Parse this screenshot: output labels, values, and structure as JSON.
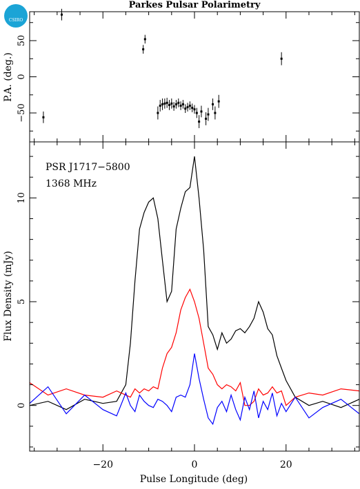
{
  "logo": {
    "text": "CSIRO",
    "color": "#1ba4d6"
  },
  "chart_data": [
    {
      "type": "scatter",
      "title": "Parkes Pulsar Polarimetry",
      "ylabel": "P.A. (deg.)",
      "xlim": [
        -36,
        36
      ],
      "ylim": [
        -90,
        90
      ],
      "yticks": [
        -50,
        0,
        50
      ],
      "points": [
        {
          "x": -33,
          "y": -56,
          "err": 8
        },
        {
          "x": -29,
          "y": 86,
          "err": 8
        },
        {
          "x": -11.2,
          "y": 38,
          "err": 6
        },
        {
          "x": -10.8,
          "y": 52,
          "err": 6
        },
        {
          "x": -8,
          "y": -50,
          "err": 9
        },
        {
          "x": -7.5,
          "y": -40,
          "err": 8
        },
        {
          "x": -7,
          "y": -38,
          "err": 8
        },
        {
          "x": -6.5,
          "y": -37,
          "err": 7
        },
        {
          "x": -6,
          "y": -36,
          "err": 7
        },
        {
          "x": -5.5,
          "y": -39,
          "err": 7
        },
        {
          "x": -5,
          "y": -37,
          "err": 7
        },
        {
          "x": -4.5,
          "y": -41,
          "err": 6
        },
        {
          "x": -4,
          "y": -38,
          "err": 6
        },
        {
          "x": -3.5,
          "y": -36,
          "err": 6
        },
        {
          "x": -3,
          "y": -40,
          "err": 6
        },
        {
          "x": -2.5,
          "y": -38,
          "err": 6
        },
        {
          "x": -2,
          "y": -44,
          "err": 6
        },
        {
          "x": -1.5,
          "y": -42,
          "err": 6
        },
        {
          "x": -1,
          "y": -40,
          "err": 6
        },
        {
          "x": -0.5,
          "y": -43,
          "err": 6
        },
        {
          "x": 0,
          "y": -45,
          "err": 6
        },
        {
          "x": 0.5,
          "y": -50,
          "err": 7
        },
        {
          "x": 1,
          "y": -62,
          "err": 9
        },
        {
          "x": 1.5,
          "y": -48,
          "err": 8
        },
        {
          "x": 2.5,
          "y": -58,
          "err": 9
        },
        {
          "x": 3,
          "y": -52,
          "err": 9
        },
        {
          "x": 4,
          "y": -38,
          "err": 8
        },
        {
          "x": 4.5,
          "y": -50,
          "err": 9
        },
        {
          "x": 5.3,
          "y": -34,
          "err": 9
        },
        {
          "x": 19,
          "y": 25,
          "err": 9
        }
      ]
    },
    {
      "type": "line",
      "title": "",
      "annotations": [
        "PSR J1717−5800",
        "1368 MHz"
      ],
      "xlabel": "Pulse Longitude (deg)",
      "ylabel": "Flux Density (mJy)",
      "xlim": [
        -36,
        36
      ],
      "ylim": [
        -2.2,
        12.7
      ],
      "xticks": [
        -20,
        0,
        20
      ],
      "yticks": [
        0,
        5,
        10
      ],
      "x": [
        -36,
        -32,
        -28,
        -24,
        -20,
        -17,
        -15,
        -14,
        -13,
        -12,
        -11,
        -10,
        -9,
        -8,
        -7,
        -6,
        -5,
        -4,
        -3,
        -2,
        -1,
        0,
        1,
        2,
        3,
        4,
        5,
        6,
        7,
        8,
        9,
        10,
        11,
        12,
        13,
        14,
        15,
        16,
        17,
        18,
        19,
        20,
        22,
        25,
        28,
        32,
        36
      ],
      "series": [
        {
          "name": "",
          "color": "#000000",
          "values": [
            0.0,
            0.2,
            -0.2,
            0.3,
            0.1,
            0.2,
            1.0,
            3.0,
            6.0,
            8.5,
            9.3,
            9.8,
            10.0,
            9.0,
            7.0,
            5.0,
            5.5,
            8.5,
            9.5,
            10.3,
            10.5,
            12.0,
            10.0,
            7.5,
            3.8,
            3.4,
            2.7,
            3.5,
            3.0,
            3.2,
            3.6,
            3.7,
            3.5,
            3.8,
            4.2,
            5.0,
            4.5,
            3.7,
            3.4,
            2.4,
            1.8,
            1.2,
            0.4,
            0.0,
            0.2,
            -0.1,
            0.3
          ]
        },
        {
          "name": "",
          "color": "#ff0000",
          "values": [
            1.1,
            0.5,
            0.8,
            0.5,
            0.4,
            0.7,
            0.5,
            0.4,
            0.8,
            0.6,
            0.8,
            0.7,
            0.9,
            0.8,
            1.8,
            2.5,
            2.8,
            3.5,
            4.6,
            5.2,
            5.6,
            5.0,
            4.2,
            3.0,
            1.8,
            1.5,
            1.0,
            0.8,
            1.0,
            0.9,
            0.7,
            1.1,
            0.0,
            0.0,
            0.2,
            0.8,
            0.5,
            0.6,
            0.9,
            0.6,
            0.7,
            0.0,
            0.4,
            0.6,
            0.5,
            0.8,
            0.7
          ]
        },
        {
          "name": "",
          "color": "#0000ff",
          "values": [
            0.1,
            0.9,
            -0.4,
            0.5,
            -0.2,
            -0.5,
            0.6,
            0.0,
            -0.3,
            0.5,
            0.2,
            0.0,
            -0.1,
            0.3,
            0.2,
            0.0,
            -0.3,
            0.4,
            0.5,
            0.4,
            1.0,
            2.5,
            1.3,
            0.3,
            -0.6,
            -0.9,
            -0.1,
            0.2,
            -0.3,
            0.5,
            -0.2,
            -0.7,
            0.4,
            -0.2,
            0.7,
            -0.6,
            0.2,
            -0.2,
            0.6,
            -0.5,
            0.1,
            -0.3,
            0.4,
            -0.6,
            -0.1,
            0.3,
            -0.4
          ]
        }
      ]
    }
  ]
}
